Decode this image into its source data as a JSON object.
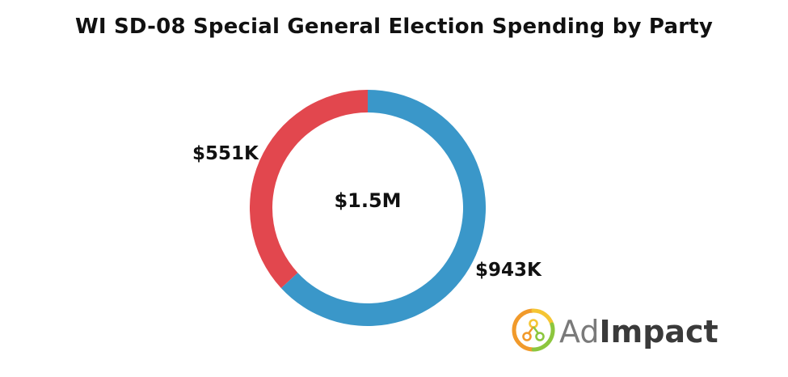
{
  "chart_data": {
    "type": "donut",
    "title": "WI SD-08 Special General Election Spending by Party",
    "center_label": "$1.5M",
    "slices": [
      {
        "label": "$943K",
        "value": 943,
        "color": "#3a97c9"
      },
      {
        "label": "$551K",
        "value": 551,
        "color": "#e2474e"
      }
    ],
    "start_angle_deg": 0,
    "direction": "clockwise"
  },
  "logo": {
    "text_regular": "Ad",
    "text_bold": "Impact",
    "colors": {
      "ring_orange": "#f19a2b",
      "ring_yellow": "#f5c533",
      "ring_green": "#8cc63e",
      "text_gray": "#7a7a7a",
      "text_dark": "#3a3a3a"
    }
  }
}
